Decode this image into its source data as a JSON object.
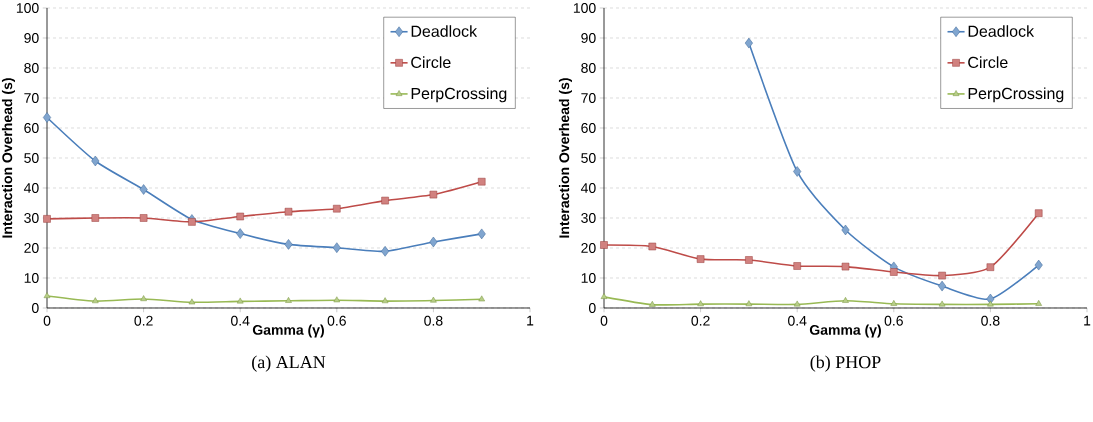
{
  "chart_data": [
    {
      "type": "line",
      "title": "(a) ALAN",
      "xlabel": "Gamma (γ)",
      "ylabel": "Interaction Overhead (s)",
      "x": [
        0,
        0.1,
        0.2,
        0.3,
        0.4,
        0.5,
        0.6,
        0.7,
        0.8,
        0.9
      ],
      "series": [
        {
          "name": "Deadlock",
          "color": "#4a7ebb",
          "marker": "diamond",
          "values": [
            63.5,
            49,
            39.5,
            29.5,
            24.8,
            21.2,
            20.1,
            18.9,
            22,
            24.7
          ]
        },
        {
          "name": "Circle",
          "color": "#be4b48",
          "marker": "square",
          "values": [
            29.7,
            30,
            30,
            28.7,
            30.5,
            32.1,
            33.1,
            35.8,
            37.8,
            42.1
          ]
        },
        {
          "name": "PerpCrossing",
          "color": "#98b954",
          "marker": "triangle",
          "values": [
            4,
            2.3,
            3,
            1.9,
            2.2,
            2.4,
            2.6,
            2.3,
            2.5,
            2.9
          ]
        }
      ],
      "xlim": [
        0,
        1
      ],
      "ylim": [
        0,
        100
      ],
      "xticks": [
        0,
        0.2,
        0.4,
        0.6,
        0.8,
        1
      ],
      "yticks": [
        0,
        10,
        20,
        30,
        40,
        50,
        60,
        70,
        80,
        90,
        100
      ],
      "grid": "y",
      "legend": "top right"
    },
    {
      "type": "line",
      "title": "(b) PHOP",
      "xlabel": "Gamma (γ)",
      "ylabel": "Interaction Overhead (s)",
      "x": [
        0,
        0.1,
        0.2,
        0.3,
        0.4,
        0.5,
        0.6,
        0.7,
        0.8,
        0.9
      ],
      "series": [
        {
          "name": "Deadlock",
          "color": "#4a7ebb",
          "marker": "diamond",
          "values": [
            null,
            null,
            null,
            88.3,
            45.5,
            26,
            13.7,
            7.3,
            3,
            14.3
          ]
        },
        {
          "name": "Circle",
          "color": "#be4b48",
          "marker": "square",
          "values": [
            21,
            20.5,
            16.3,
            16,
            14,
            13.8,
            12,
            10.8,
            13.6,
            31.6
          ]
        },
        {
          "name": "PerpCrossing",
          "color": "#98b954",
          "marker": "triangle",
          "values": [
            3.7,
            1.1,
            1.3,
            1.3,
            1.2,
            2.4,
            1.4,
            1.2,
            1.2,
            1.4
          ]
        }
      ],
      "xlim": [
        0,
        1
      ],
      "ylim": [
        0,
        100
      ],
      "xticks": [
        0,
        0.2,
        0.4,
        0.6,
        0.8,
        1
      ],
      "yticks": [
        0,
        10,
        20,
        30,
        40,
        50,
        60,
        70,
        80,
        90,
        100
      ],
      "grid": "y",
      "legend": "top right"
    }
  ]
}
